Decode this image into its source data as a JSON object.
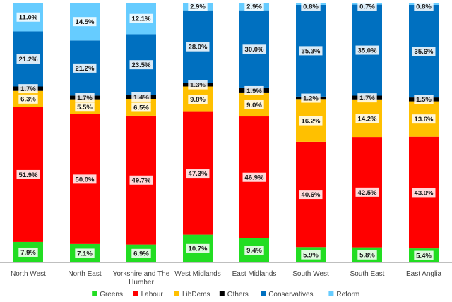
{
  "chart_data": {
    "type": "bar",
    "stacked": true,
    "percent_stacked": true,
    "categories": [
      "North West",
      "North East",
      "Yorkshire and The Humber",
      "West Midlands",
      "East Midlands",
      "South West",
      "South East",
      "East Anglia"
    ],
    "category_lines": [
      [
        "North West"
      ],
      [
        "North East"
      ],
      [
        "Yorkshire and The",
        "Humber"
      ],
      [
        "West Midlands"
      ],
      [
        "East Midlands"
      ],
      [
        "South West"
      ],
      [
        "South East"
      ],
      [
        "East Anglia"
      ]
    ],
    "series": [
      {
        "name": "Greens",
        "color": "#22dd22",
        "values": [
          7.9,
          7.1,
          6.9,
          10.7,
          9.4,
          5.9,
          5.8,
          5.4
        ],
        "labels": [
          "7.9%",
          "7.1%",
          "6.9%",
          "10.7%",
          "9.4%",
          "5.9%",
          "5.8%",
          "5.4%"
        ]
      },
      {
        "name": "Labour",
        "color": "#ff0000",
        "values": [
          51.9,
          50.0,
          49.7,
          47.3,
          46.9,
          40.6,
          42.5,
          43.0
        ],
        "labels": [
          "51.9%",
          "50.0%",
          "49.7%",
          "47.3%",
          "46.9%",
          "40.6%",
          "42.5%",
          "43.0%"
        ]
      },
      {
        "name": "LibDems",
        "color": "#ffc000",
        "values": [
          6.3,
          5.5,
          6.5,
          9.8,
          9.0,
          16.2,
          14.2,
          13.6
        ],
        "labels": [
          "6.3%",
          "5.5%",
          "6.5%",
          "9.8%",
          "9.0%",
          "16.2%",
          "14.2%",
          "13.6%"
        ]
      },
      {
        "name": "Others",
        "color": "#000000",
        "values": [
          1.7,
          1.7,
          1.4,
          1.3,
          1.9,
          1.2,
          1.7,
          1.5
        ],
        "labels": [
          "1.7%",
          "1.7%",
          "1.4%",
          "1.3%",
          "1.9%",
          "1.2%",
          "1.7%",
          "1.5%"
        ]
      },
      {
        "name": "Conservatives",
        "color": "#0070c0",
        "values": [
          21.2,
          21.2,
          23.5,
          28.0,
          30.0,
          35.3,
          35.0,
          35.6
        ],
        "labels": [
          "21.2%",
          "21.2%",
          "23.5%",
          "28.0%",
          "30.0%",
          "35.3%",
          "35.0%",
          "35.6%"
        ]
      },
      {
        "name": "Reform",
        "color": "#66ccff",
        "values": [
          11.0,
          14.5,
          12.1,
          2.9,
          2.9,
          0.8,
          0.7,
          0.8
        ],
        "labels": [
          "11.0%",
          "14.5%",
          "12.1%",
          "2.9%",
          "2.9%",
          "0.8%",
          "0.7%",
          "0.8%"
        ]
      }
    ],
    "ylim": [
      0,
      100
    ],
    "grid": false,
    "legend_position": "bottom"
  }
}
